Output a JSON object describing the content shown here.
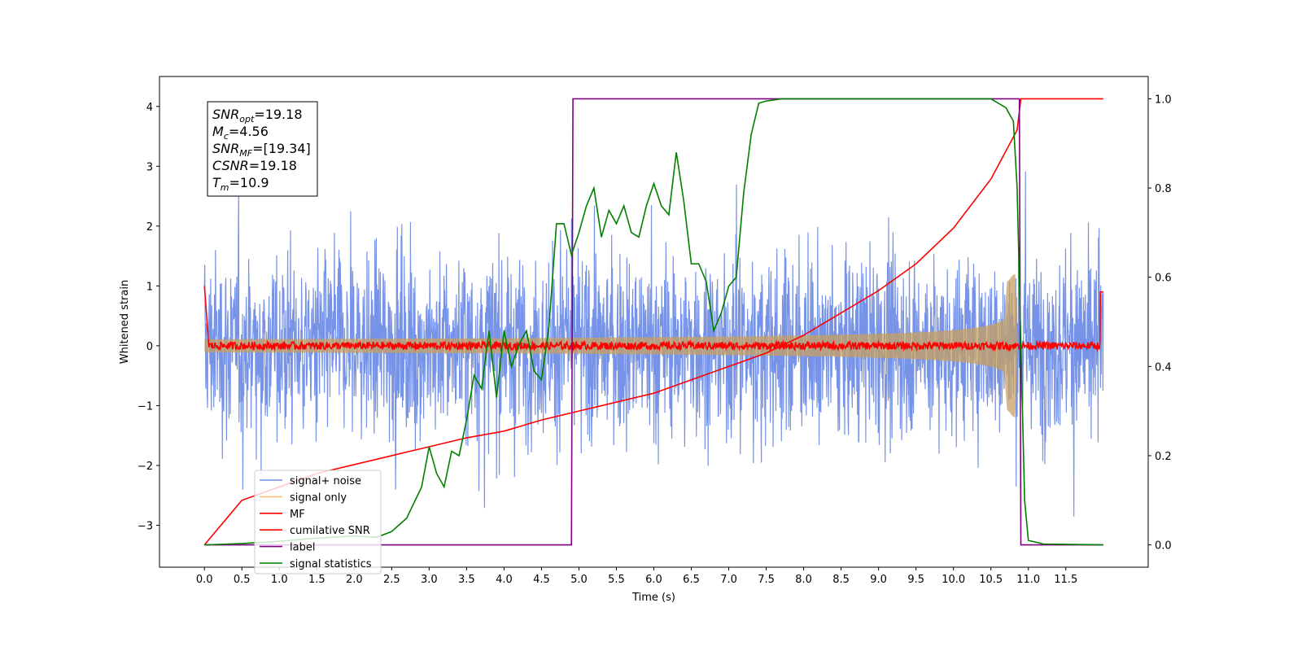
{
  "chart_data": {
    "type": "line",
    "xlabel": "Time (s)",
    "ylabel_left": "Whitened strain",
    "ylabel_right": "",
    "xlim": [
      -0.6,
      12.6
    ],
    "ylim_left": [
      -3.7,
      4.5
    ],
    "ylim_right": [
      -0.05,
      1.05
    ],
    "x_ticks": [
      0.0,
      0.5,
      1.0,
      1.5,
      2.0,
      2.5,
      3.0,
      3.5,
      4.0,
      4.5,
      5.0,
      5.5,
      6.0,
      6.5,
      7.0,
      7.5,
      8.0,
      8.5,
      9.0,
      9.5,
      10.0,
      10.5,
      11.0,
      11.5
    ],
    "x_tick_labels": [
      "0.0",
      "0.5",
      "1.0",
      "1.5",
      "2.0",
      "2.5",
      "3.0",
      "3.5",
      "4.0",
      "4.5",
      "5.0",
      "5.5",
      "6.0",
      "6.5",
      "7.0",
      "7.5",
      "8.0",
      "8.5",
      "9.0",
      "9.5",
      "10.0",
      "10.5",
      "11.0",
      "11.5"
    ],
    "y_ticks_left": [
      -3,
      -2,
      -1,
      0,
      1,
      2,
      3,
      4
    ],
    "y_tick_labels_left": [
      "−3",
      "−2",
      "−1",
      "0",
      "1",
      "2",
      "3",
      "4"
    ],
    "y_ticks_right": [
      0.0,
      0.2,
      0.4,
      0.6,
      0.8,
      1.0
    ],
    "y_tick_labels_right": [
      "0.0",
      "0.2",
      "0.4",
      "0.6",
      "0.8",
      "1.0"
    ],
    "grid": false,
    "legend_position": "lower-left",
    "stats_box": [
      {
        "main": "SNR",
        "sub": "opt",
        "value": "=19.18"
      },
      {
        "main": "M",
        "sub": "c",
        "value": "=4.56"
      },
      {
        "main": "SNR",
        "sub": "MF",
        "value": "=[19.34]"
      },
      {
        "main": "CSNR",
        "sub": "",
        "value": "=19.18"
      },
      {
        "main": "T",
        "sub": "m",
        "value": "=10.9"
      }
    ],
    "series": [
      {
        "name": "signal+ noise",
        "color": "#6f8de6",
        "axis": "left",
        "description": "whitened noise, amplitude roughly +/-2.5 over 0 to 12 s"
      },
      {
        "name": "signal only",
        "color": "#f5b041",
        "axis": "left",
        "description": "chirp envelope growing from ~0.1 to ~1.0 at 10.85 s"
      },
      {
        "name": "MF",
        "color": "#ff0000",
        "axis": "left",
        "description": "matched filter output near 0"
      },
      {
        "name": "cumilative SNR",
        "color": "#ff0000",
        "axis": "right",
        "x": [
          0.0,
          0.5,
          1.0,
          1.5,
          2.0,
          2.5,
          3.0,
          3.5,
          4.0,
          4.5,
          5.0,
          5.5,
          6.0,
          6.5,
          7.0,
          7.5,
          8.0,
          8.5,
          9.0,
          9.5,
          10.0,
          10.5,
          10.85,
          10.9,
          12.0
        ],
        "values": [
          0.0,
          0.1,
          0.13,
          0.16,
          0.18,
          0.2,
          0.22,
          0.24,
          0.255,
          0.28,
          0.3,
          0.32,
          0.34,
          0.37,
          0.4,
          0.43,
          0.47,
          0.52,
          0.57,
          0.63,
          0.71,
          0.82,
          0.93,
          1.0,
          1.0
        ]
      },
      {
        "name": "label",
        "color": "#800080",
        "axis": "right",
        "x": [
          0.0,
          4.9,
          4.92,
          10.88,
          10.9,
          12.0
        ],
        "values": [
          0.0,
          0.0,
          1.0,
          1.0,
          0.0,
          0.0
        ]
      },
      {
        "name": "signal statistics",
        "color": "#008000",
        "axis": "right",
        "x": [
          0.0,
          0.5,
          1.0,
          1.5,
          2.0,
          2.3,
          2.5,
          2.7,
          2.9,
          3.0,
          3.1,
          3.2,
          3.3,
          3.4,
          3.5,
          3.6,
          3.7,
          3.8,
          3.9,
          4.0,
          4.1,
          4.2,
          4.3,
          4.4,
          4.5,
          4.6,
          4.7,
          4.8,
          4.9,
          5.0,
          5.1,
          5.2,
          5.3,
          5.4,
          5.5,
          5.6,
          5.7,
          5.8,
          5.9,
          6.0,
          6.1,
          6.2,
          6.3,
          6.4,
          6.5,
          6.6,
          6.7,
          6.8,
          6.9,
          7.0,
          7.1,
          7.2,
          7.3,
          7.4,
          7.5,
          7.7,
          8.0,
          9.0,
          10.0,
          10.5,
          10.7,
          10.8,
          10.85,
          10.9,
          10.95,
          11.0,
          11.2,
          12.0
        ],
        "values": [
          0.0,
          0.003,
          0.008,
          0.015,
          0.02,
          0.017,
          0.03,
          0.06,
          0.13,
          0.22,
          0.16,
          0.13,
          0.21,
          0.2,
          0.28,
          0.38,
          0.35,
          0.48,
          0.33,
          0.48,
          0.4,
          0.45,
          0.48,
          0.39,
          0.37,
          0.49,
          0.72,
          0.72,
          0.65,
          0.7,
          0.76,
          0.8,
          0.69,
          0.75,
          0.72,
          0.76,
          0.7,
          0.69,
          0.76,
          0.81,
          0.76,
          0.74,
          0.88,
          0.77,
          0.63,
          0.63,
          0.59,
          0.48,
          0.52,
          0.58,
          0.6,
          0.79,
          0.92,
          0.99,
          0.995,
          1.0,
          1.0,
          1.0,
          1.0,
          1.0,
          0.98,
          0.95,
          0.8,
          0.45,
          0.1,
          0.01,
          0.002,
          0.0
        ]
      }
    ]
  }
}
